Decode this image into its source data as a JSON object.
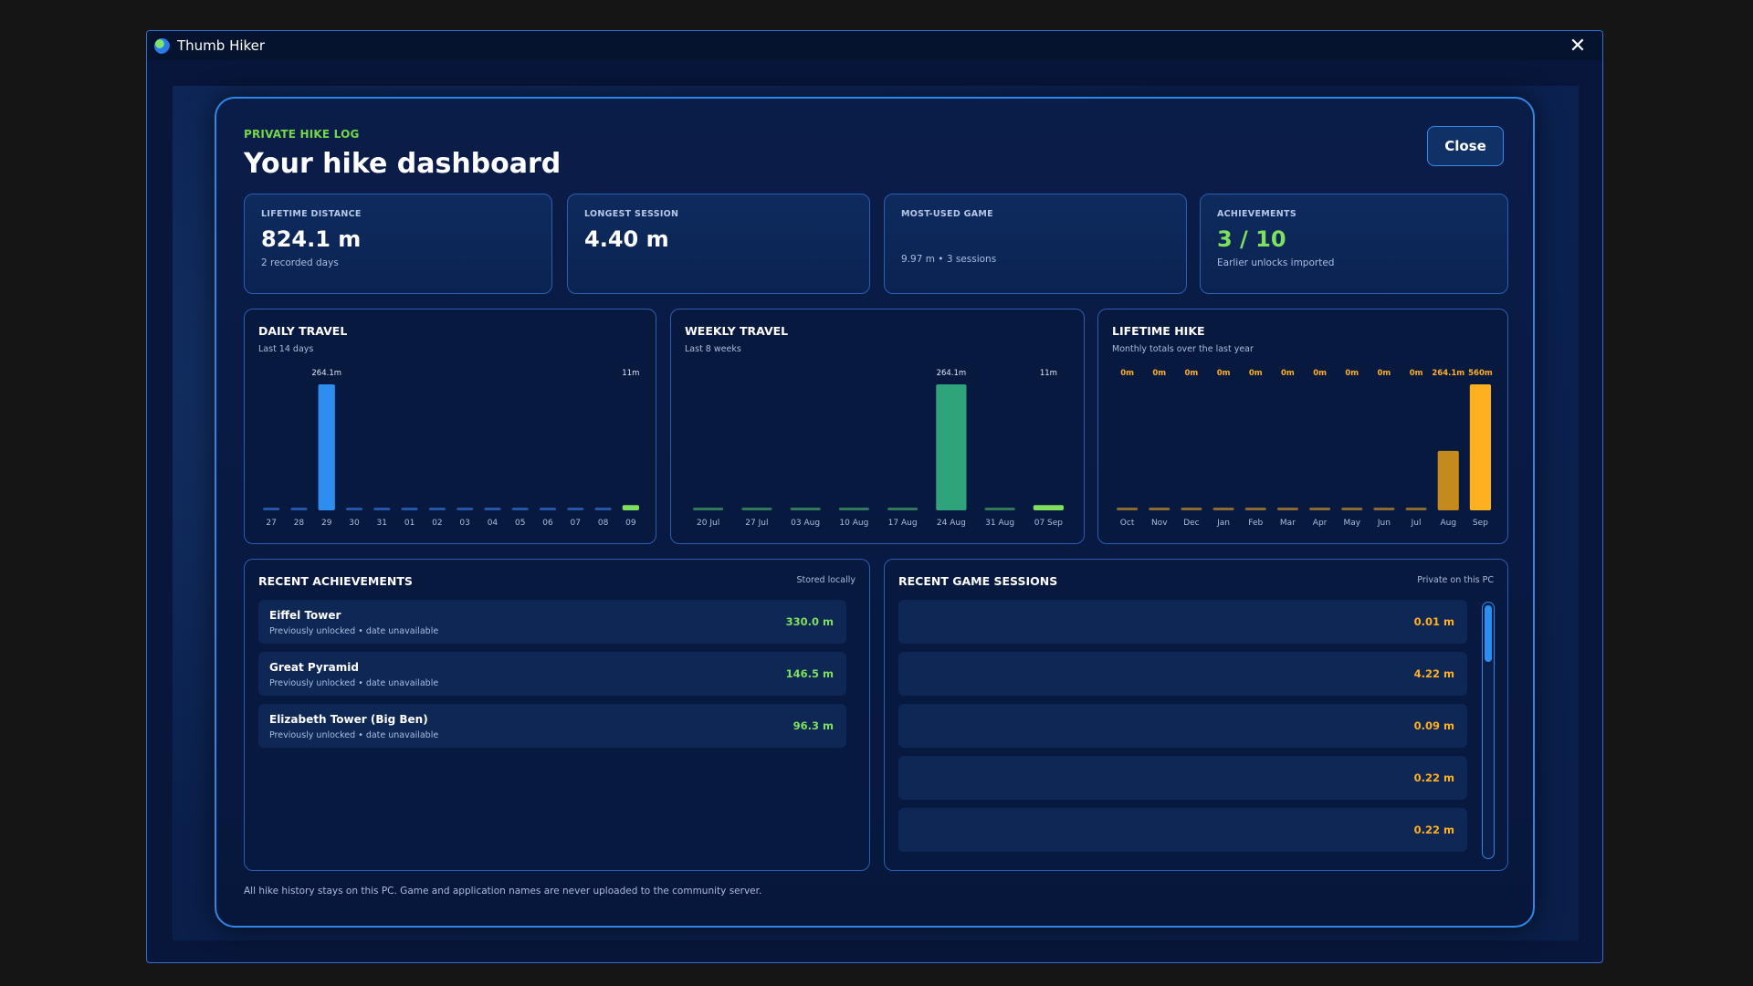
{
  "window": {
    "title": "Thumb Hiker",
    "close_glyph": "✕"
  },
  "dashboard": {
    "eyebrow": "PRIVATE HIKE LOG",
    "title": "Your hike dashboard",
    "close_label": "Close",
    "footer_note": "All hike history stays on this PC. Game and application names are never uploaded to the community server."
  },
  "stats": [
    {
      "label": "LIFETIME DISTANCE",
      "value": "824.1 m",
      "sub": "2 recorded days"
    },
    {
      "label": "LONGEST SESSION",
      "value": "4.40 m",
      "sub": ""
    },
    {
      "label": "MOST-USED GAME",
      "value": "",
      "sub": "9.97 m  •  3 sessions"
    },
    {
      "label": "ACHIEVEMENTS",
      "value": "3 / 10",
      "sub": "Earlier unlocks imported"
    }
  ],
  "colors": {
    "daily": "#2d8ef0",
    "daily_low": "#2456a8",
    "daily_latest": "#7ee05c",
    "weekly": "#2fa37a",
    "weekly_low": "#2e7a5a",
    "weekly_latest": "#7ee05c",
    "lifetime_past": "#c58a1c",
    "lifetime_current": "#ffb020",
    "lifetime_low": "#8a6a30",
    "green_text": "#7ee05c",
    "orange_text": "#ffb020"
  },
  "chart_data": [
    {
      "type": "bar",
      "title": "DAILY TRAVEL",
      "subtitle": "Last 14 days",
      "categories": [
        "27",
        "28",
        "29",
        "30",
        "31",
        "01",
        "02",
        "03",
        "04",
        "05",
        "06",
        "07",
        "08",
        "09"
      ],
      "values": [
        0,
        0,
        264.1,
        0,
        0,
        0,
        0,
        0,
        0,
        0,
        0,
        0,
        0,
        11
      ],
      "value_labels": [
        "",
        "",
        "264.1m",
        "",
        "",
        "",
        "",
        "",
        "",
        "",
        "",
        "",
        "",
        "11m"
      ],
      "ylim": [
        0,
        264.1
      ],
      "grid": false
    },
    {
      "type": "bar",
      "title": "WEEKLY TRAVEL",
      "subtitle": "Last 8 weeks",
      "categories": [
        "20 Jul",
        "27 Jul",
        "03 Aug",
        "10 Aug",
        "17 Aug",
        "24 Aug",
        "31 Aug",
        "07 Sep"
      ],
      "values": [
        0,
        0,
        0,
        0,
        0,
        264.1,
        0,
        11
      ],
      "value_labels": [
        "",
        "",
        "",
        "",
        "",
        "264.1m",
        "",
        "11m"
      ],
      "ylim": [
        0,
        264.1
      ],
      "grid": false
    },
    {
      "type": "bar",
      "title": "LIFETIME HIKE",
      "subtitle": "Monthly totals over the last year",
      "categories": [
        "Oct",
        "Nov",
        "Dec",
        "Jan",
        "Feb",
        "Mar",
        "Apr",
        "May",
        "Jun",
        "Jul",
        "Aug",
        "Sep"
      ],
      "values": [
        0,
        0,
        0,
        0,
        0,
        0,
        0,
        0,
        0,
        0,
        264.1,
        560
      ],
      "value_labels": [
        "0m",
        "0m",
        "0m",
        "0m",
        "0m",
        "0m",
        "0m",
        "0m",
        "0m",
        "0m",
        "264.1m",
        "560m"
      ],
      "ylim": [
        0,
        560
      ],
      "grid": false
    }
  ],
  "achievements": {
    "title": "RECENT ACHIEVEMENTS",
    "tag": "Stored locally",
    "items": [
      {
        "name": "Eiffel Tower",
        "detail": "Previously unlocked  •  date unavailable",
        "value": "330.0 m"
      },
      {
        "name": "Great Pyramid",
        "detail": "Previously unlocked  •  date unavailable",
        "value": "146.5 m"
      },
      {
        "name": "Elizabeth Tower (Big Ben)",
        "detail": "Previously unlocked  •  date unavailable",
        "value": "96.3 m"
      }
    ]
  },
  "sessions": {
    "title": "RECENT GAME SESSIONS",
    "tag": "Private on this PC",
    "items": [
      {
        "value": "0.01 m"
      },
      {
        "value": "4.22 m"
      },
      {
        "value": "0.09 m"
      },
      {
        "value": "0.22 m"
      },
      {
        "value": "0.22 m"
      }
    ]
  }
}
